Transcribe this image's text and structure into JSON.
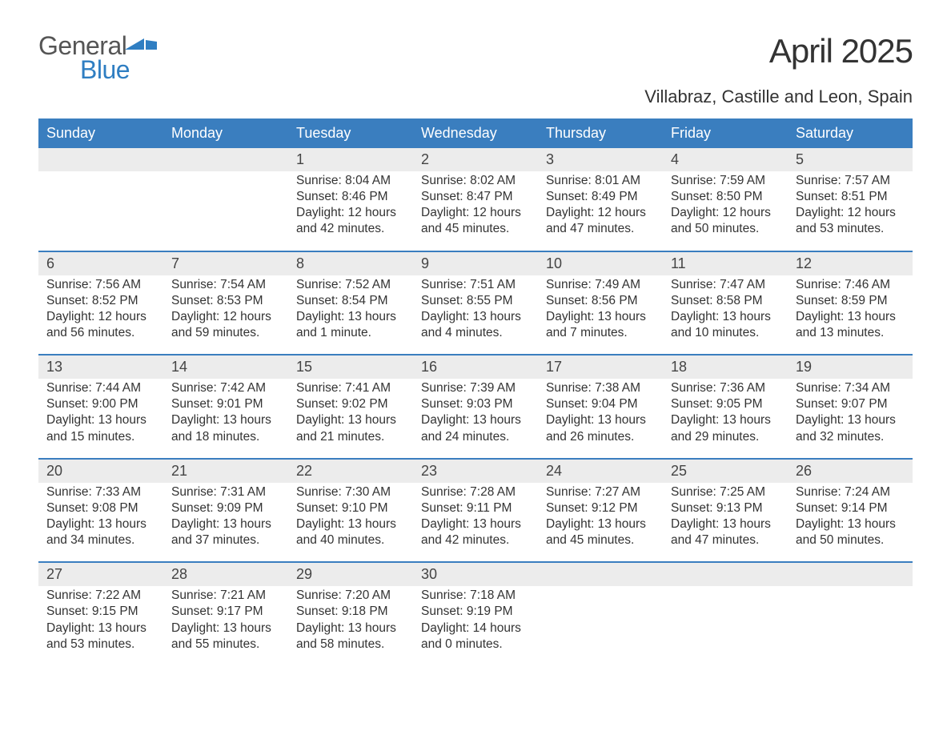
{
  "logo": {
    "word1": "General",
    "word2": "Blue"
  },
  "title": "April 2025",
  "location": "Villabraz, Castille and Leon, Spain",
  "colors": {
    "header_bg": "#3a7ebf",
    "header_text": "#ffffff",
    "daynum_bg": "#ececec",
    "week_sep": "#3a7ebf",
    "body_text": "#333333",
    "logo_gray": "#555555",
    "logo_blue": "#2f7ec2",
    "page_bg": "#ffffff"
  },
  "day_headers": [
    "Sunday",
    "Monday",
    "Tuesday",
    "Wednesday",
    "Thursday",
    "Friday",
    "Saturday"
  ],
  "weeks": [
    {
      "has_sep": false,
      "days": [
        {
          "num": "",
          "lines": [
            "",
            "",
            "",
            ""
          ]
        },
        {
          "num": "",
          "lines": [
            "",
            "",
            "",
            ""
          ]
        },
        {
          "num": "1",
          "lines": [
            "Sunrise: 8:04 AM",
            "Sunset: 8:46 PM",
            "Daylight: 12 hours",
            "and 42 minutes."
          ]
        },
        {
          "num": "2",
          "lines": [
            "Sunrise: 8:02 AM",
            "Sunset: 8:47 PM",
            "Daylight: 12 hours",
            "and 45 minutes."
          ]
        },
        {
          "num": "3",
          "lines": [
            "Sunrise: 8:01 AM",
            "Sunset: 8:49 PM",
            "Daylight: 12 hours",
            "and 47 minutes."
          ]
        },
        {
          "num": "4",
          "lines": [
            "Sunrise: 7:59 AM",
            "Sunset: 8:50 PM",
            "Daylight: 12 hours",
            "and 50 minutes."
          ]
        },
        {
          "num": "5",
          "lines": [
            "Sunrise: 7:57 AM",
            "Sunset: 8:51 PM",
            "Daylight: 12 hours",
            "and 53 minutes."
          ]
        }
      ]
    },
    {
      "has_sep": true,
      "days": [
        {
          "num": "6",
          "lines": [
            "Sunrise: 7:56 AM",
            "Sunset: 8:52 PM",
            "Daylight: 12 hours",
            "and 56 minutes."
          ]
        },
        {
          "num": "7",
          "lines": [
            "Sunrise: 7:54 AM",
            "Sunset: 8:53 PM",
            "Daylight: 12 hours",
            "and 59 minutes."
          ]
        },
        {
          "num": "8",
          "lines": [
            "Sunrise: 7:52 AM",
            "Sunset: 8:54 PM",
            "Daylight: 13 hours",
            "and 1 minute."
          ]
        },
        {
          "num": "9",
          "lines": [
            "Sunrise: 7:51 AM",
            "Sunset: 8:55 PM",
            "Daylight: 13 hours",
            "and 4 minutes."
          ]
        },
        {
          "num": "10",
          "lines": [
            "Sunrise: 7:49 AM",
            "Sunset: 8:56 PM",
            "Daylight: 13 hours",
            "and 7 minutes."
          ]
        },
        {
          "num": "11",
          "lines": [
            "Sunrise: 7:47 AM",
            "Sunset: 8:58 PM",
            "Daylight: 13 hours",
            "and 10 minutes."
          ]
        },
        {
          "num": "12",
          "lines": [
            "Sunrise: 7:46 AM",
            "Sunset: 8:59 PM",
            "Daylight: 13 hours",
            "and 13 minutes."
          ]
        }
      ]
    },
    {
      "has_sep": true,
      "days": [
        {
          "num": "13",
          "lines": [
            "Sunrise: 7:44 AM",
            "Sunset: 9:00 PM",
            "Daylight: 13 hours",
            "and 15 minutes."
          ]
        },
        {
          "num": "14",
          "lines": [
            "Sunrise: 7:42 AM",
            "Sunset: 9:01 PM",
            "Daylight: 13 hours",
            "and 18 minutes."
          ]
        },
        {
          "num": "15",
          "lines": [
            "Sunrise: 7:41 AM",
            "Sunset: 9:02 PM",
            "Daylight: 13 hours",
            "and 21 minutes."
          ]
        },
        {
          "num": "16",
          "lines": [
            "Sunrise: 7:39 AM",
            "Sunset: 9:03 PM",
            "Daylight: 13 hours",
            "and 24 minutes."
          ]
        },
        {
          "num": "17",
          "lines": [
            "Sunrise: 7:38 AM",
            "Sunset: 9:04 PM",
            "Daylight: 13 hours",
            "and 26 minutes."
          ]
        },
        {
          "num": "18",
          "lines": [
            "Sunrise: 7:36 AM",
            "Sunset: 9:05 PM",
            "Daylight: 13 hours",
            "and 29 minutes."
          ]
        },
        {
          "num": "19",
          "lines": [
            "Sunrise: 7:34 AM",
            "Sunset: 9:07 PM",
            "Daylight: 13 hours",
            "and 32 minutes."
          ]
        }
      ]
    },
    {
      "has_sep": true,
      "days": [
        {
          "num": "20",
          "lines": [
            "Sunrise: 7:33 AM",
            "Sunset: 9:08 PM",
            "Daylight: 13 hours",
            "and 34 minutes."
          ]
        },
        {
          "num": "21",
          "lines": [
            "Sunrise: 7:31 AM",
            "Sunset: 9:09 PM",
            "Daylight: 13 hours",
            "and 37 minutes."
          ]
        },
        {
          "num": "22",
          "lines": [
            "Sunrise: 7:30 AM",
            "Sunset: 9:10 PM",
            "Daylight: 13 hours",
            "and 40 minutes."
          ]
        },
        {
          "num": "23",
          "lines": [
            "Sunrise: 7:28 AM",
            "Sunset: 9:11 PM",
            "Daylight: 13 hours",
            "and 42 minutes."
          ]
        },
        {
          "num": "24",
          "lines": [
            "Sunrise: 7:27 AM",
            "Sunset: 9:12 PM",
            "Daylight: 13 hours",
            "and 45 minutes."
          ]
        },
        {
          "num": "25",
          "lines": [
            "Sunrise: 7:25 AM",
            "Sunset: 9:13 PM",
            "Daylight: 13 hours",
            "and 47 minutes."
          ]
        },
        {
          "num": "26",
          "lines": [
            "Sunrise: 7:24 AM",
            "Sunset: 9:14 PM",
            "Daylight: 13 hours",
            "and 50 minutes."
          ]
        }
      ]
    },
    {
      "has_sep": true,
      "days": [
        {
          "num": "27",
          "lines": [
            "Sunrise: 7:22 AM",
            "Sunset: 9:15 PM",
            "Daylight: 13 hours",
            "and 53 minutes."
          ]
        },
        {
          "num": "28",
          "lines": [
            "Sunrise: 7:21 AM",
            "Sunset: 9:17 PM",
            "Daylight: 13 hours",
            "and 55 minutes."
          ]
        },
        {
          "num": "29",
          "lines": [
            "Sunrise: 7:20 AM",
            "Sunset: 9:18 PM",
            "Daylight: 13 hours",
            "and 58 minutes."
          ]
        },
        {
          "num": "30",
          "lines": [
            "Sunrise: 7:18 AM",
            "Sunset: 9:19 PM",
            "Daylight: 14 hours",
            "and 0 minutes."
          ]
        },
        {
          "num": "",
          "lines": [
            "",
            "",
            "",
            ""
          ]
        },
        {
          "num": "",
          "lines": [
            "",
            "",
            "",
            ""
          ]
        },
        {
          "num": "",
          "lines": [
            "",
            "",
            "",
            ""
          ]
        }
      ]
    }
  ]
}
